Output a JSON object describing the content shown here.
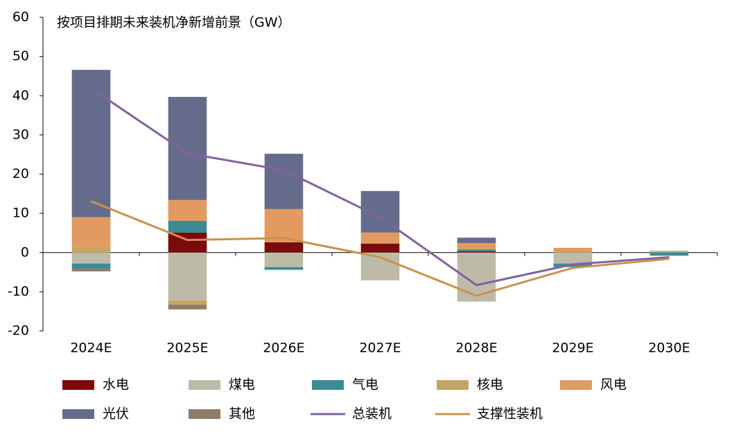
{
  "chart_data": {
    "type": "stacked-bar-line",
    "title": "按项目排期未来装机净新增前景（GW）",
    "categories": [
      "2024E",
      "2025E",
      "2026E",
      "2027E",
      "2028E",
      "2029E",
      "2030E"
    ],
    "ylim": [
      -20,
      60
    ],
    "yticks": [
      -20,
      -10,
      0,
      10,
      20,
      30,
      40,
      50,
      60
    ],
    "series": [
      {
        "name": "水电",
        "color": "#7b0a0a",
        "kind": "bar",
        "values": [
          0,
          5.1,
          2.6,
          2.3,
          0.3,
          0,
          0
        ]
      },
      {
        "name": "煤电",
        "color": "#bdbba7",
        "kind": "bar",
        "values": [
          -2.8,
          -12.2,
          -3.7,
          -7.1,
          -12.5,
          -2.8,
          0.5
        ]
      },
      {
        "name": "气电",
        "color": "#3b8b97",
        "kind": "bar",
        "values": [
          -1.3,
          3.0,
          -0.7,
          0,
          0.5,
          -0.9,
          -0.8
        ]
      },
      {
        "name": "核电",
        "color": "#c6a563",
        "kind": "bar",
        "values": [
          1.5,
          -1.1,
          0,
          0,
          0,
          0,
          0
        ]
      },
      {
        "name": "风电",
        "color": "#e39a60",
        "kind": "bar",
        "values": [
          7.5,
          5.3,
          8.5,
          2.8,
          1.6,
          1.2,
          0
        ]
      },
      {
        "name": "光伏",
        "color": "#656c8b",
        "kind": "bar",
        "values": [
          37.6,
          26.3,
          14.1,
          10.6,
          1.4,
          0,
          0
        ]
      },
      {
        "name": "其他",
        "color": "#907b66",
        "kind": "bar",
        "values": [
          -0.7,
          -1.2,
          0,
          0,
          0,
          0,
          0
        ]
      },
      {
        "name": "总装机",
        "color": "#8061a1",
        "kind": "line",
        "values": [
          41.9,
          25.3,
          21.0,
          9.0,
          -8.3,
          -3.0,
          -1.2
        ]
      },
      {
        "name": "支撑性装机",
        "color": "#c9924b",
        "kind": "line",
        "values": [
          13.1,
          3.2,
          3.7,
          -1.2,
          -11.0,
          -3.9,
          -1.6
        ]
      }
    ]
  }
}
